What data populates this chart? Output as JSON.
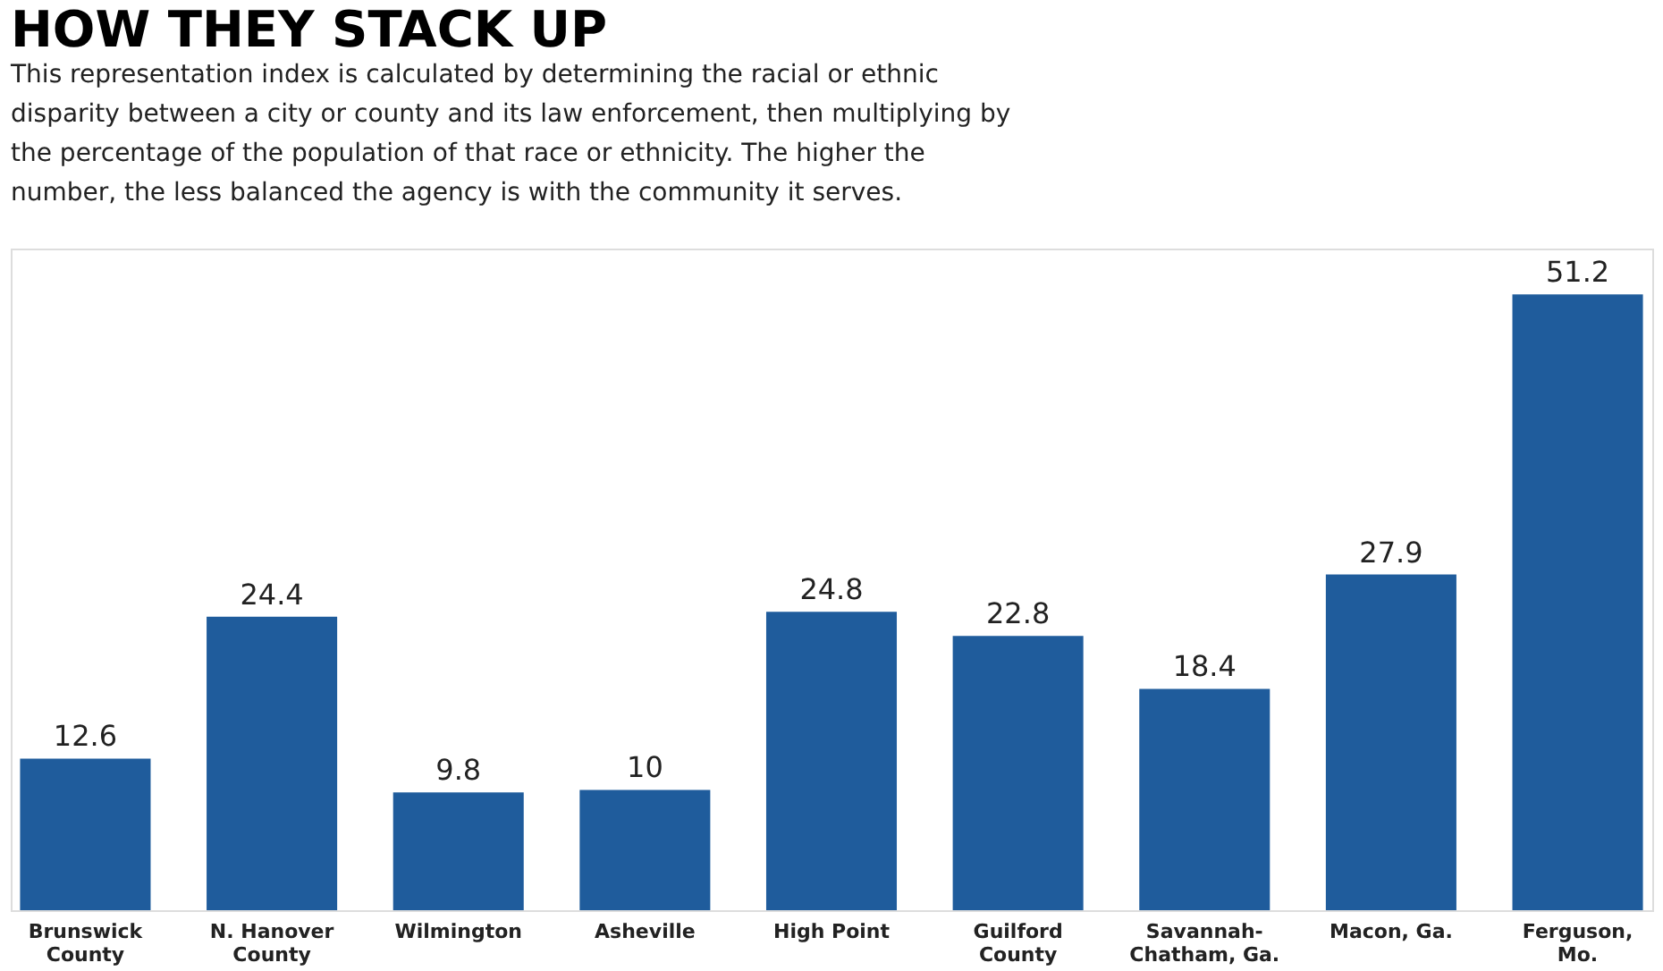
{
  "chart_data": {
    "type": "bar",
    "title": "HOW THEY STACK UP",
    "subtitle": "This representation index is calculated by determining the racial or ethnic disparity between a city or county and its law enforcement, then multiplying by the percentage of the population of that race or ethnicity. The higher the number, the less balanced the agency is with the community it serves.",
    "categories": [
      "Brunswick County",
      "N. Hanover County",
      "Wilmington",
      "Asheville",
      "High Point",
      "Guilford County",
      "Savannah-Chatham, Ga.",
      "Macon, Ga.",
      "Ferguson, Mo."
    ],
    "values": [
      12.6,
      24.4,
      9.8,
      10,
      24.8,
      22.8,
      18.4,
      27.9,
      51.2
    ],
    "color": "#1f5c9c",
    "data_labels": true
  }
}
